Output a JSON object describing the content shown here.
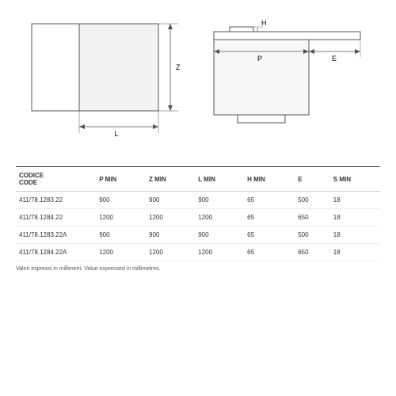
{
  "diagrams": {
    "left": {
      "dim_v_label": "Z",
      "dim_h_label": "L"
    },
    "right": {
      "dim_h_label": "H",
      "dim_p_label": "P",
      "dim_e_label": "E"
    },
    "stroke": "#555555",
    "fill_panel": "#f5f5f5",
    "fill_body": "#ffffff"
  },
  "table": {
    "headers": {
      "codice1": "CODICE",
      "codice2": "CODE",
      "p": "P MIN",
      "z": "Z MIN",
      "l": "L MIN",
      "h": "H MIN",
      "e": "E",
      "s": "S MIN"
    },
    "rows": [
      {
        "code": "411/78.1283.22",
        "p": "900",
        "z": "900",
        "l": "900",
        "h": "65",
        "e": "500",
        "s": "18"
      },
      {
        "code": "411/78.1284.22",
        "p": "1200",
        "z": "1200",
        "l": "1200",
        "h": "65",
        "e": "650",
        "s": "18"
      },
      {
        "code": "411/78.1283.22A",
        "p": "900",
        "z": "900",
        "l": "900",
        "h": "65",
        "e": "500",
        "s": "18"
      },
      {
        "code": "411/78.1284.22A",
        "p": "1200",
        "z": "1200",
        "l": "1200",
        "h": "65",
        "e": "650",
        "s": "18"
      }
    ]
  },
  "footnote": "Valori espressi in millimetri.   Value expressed in millimetres."
}
